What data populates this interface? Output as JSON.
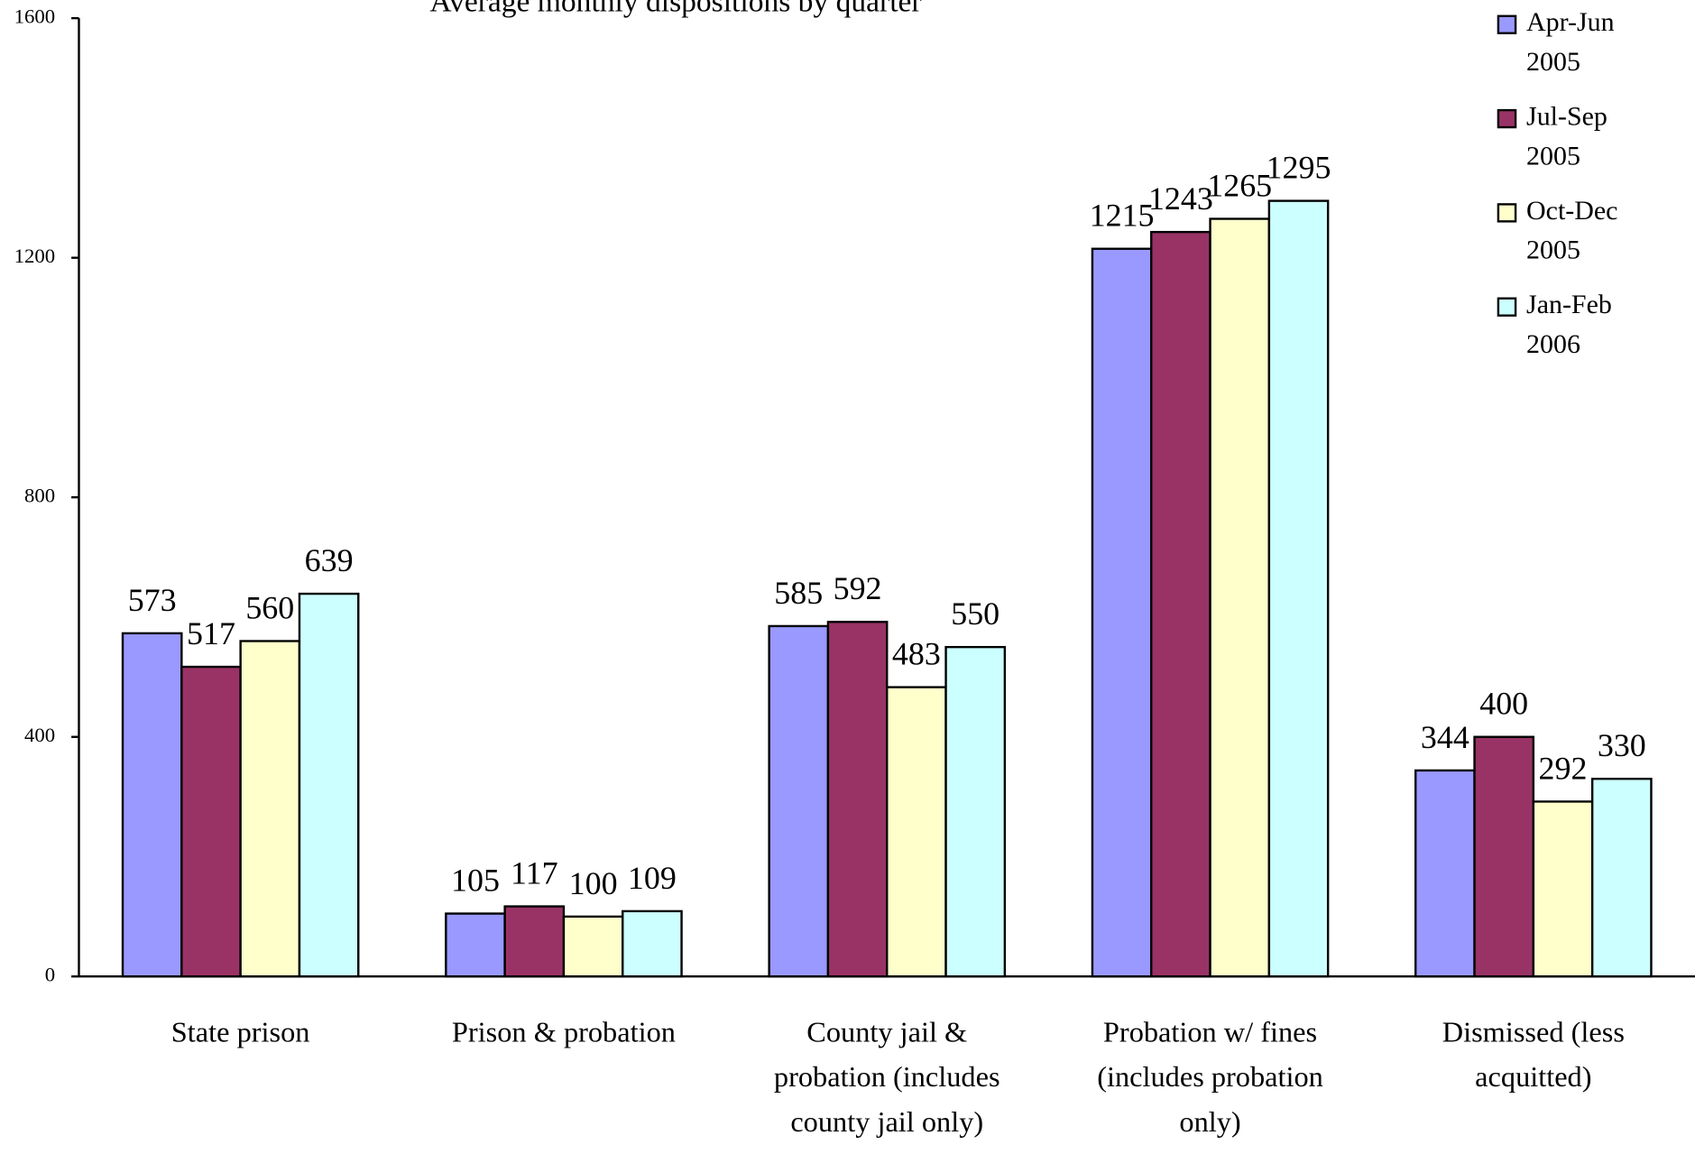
{
  "chart_data": {
    "type": "bar",
    "title": "Average monthly dispositions by quarter",
    "categories": [
      "State prison",
      "Prison & probation",
      "County jail & probation (includes county jail only)",
      "Probation w/ fines (includes probation only)",
      "Dismissed (less acquitted)"
    ],
    "series": [
      {
        "name": "Apr-Jun 2005",
        "color": "#9999ff",
        "values": [
          573,
          105,
          585,
          1215,
          344
        ]
      },
      {
        "name": "Jul-Sep 2005",
        "color": "#993366",
        "values": [
          517,
          117,
          592,
          1243,
          400
        ]
      },
      {
        "name": "Oct-Dec 2005",
        "color": "#ffffcc",
        "values": [
          560,
          100,
          483,
          1265,
          292
        ]
      },
      {
        "name": "Jan-Feb 2006",
        "color": "#ccffff",
        "values": [
          639,
          109,
          550,
          1295,
          330
        ]
      }
    ],
    "ylim": [
      0,
      1600
    ],
    "yticks": [
      0,
      400,
      800,
      1200,
      1600
    ],
    "grid": false,
    "legend": "top-right"
  }
}
